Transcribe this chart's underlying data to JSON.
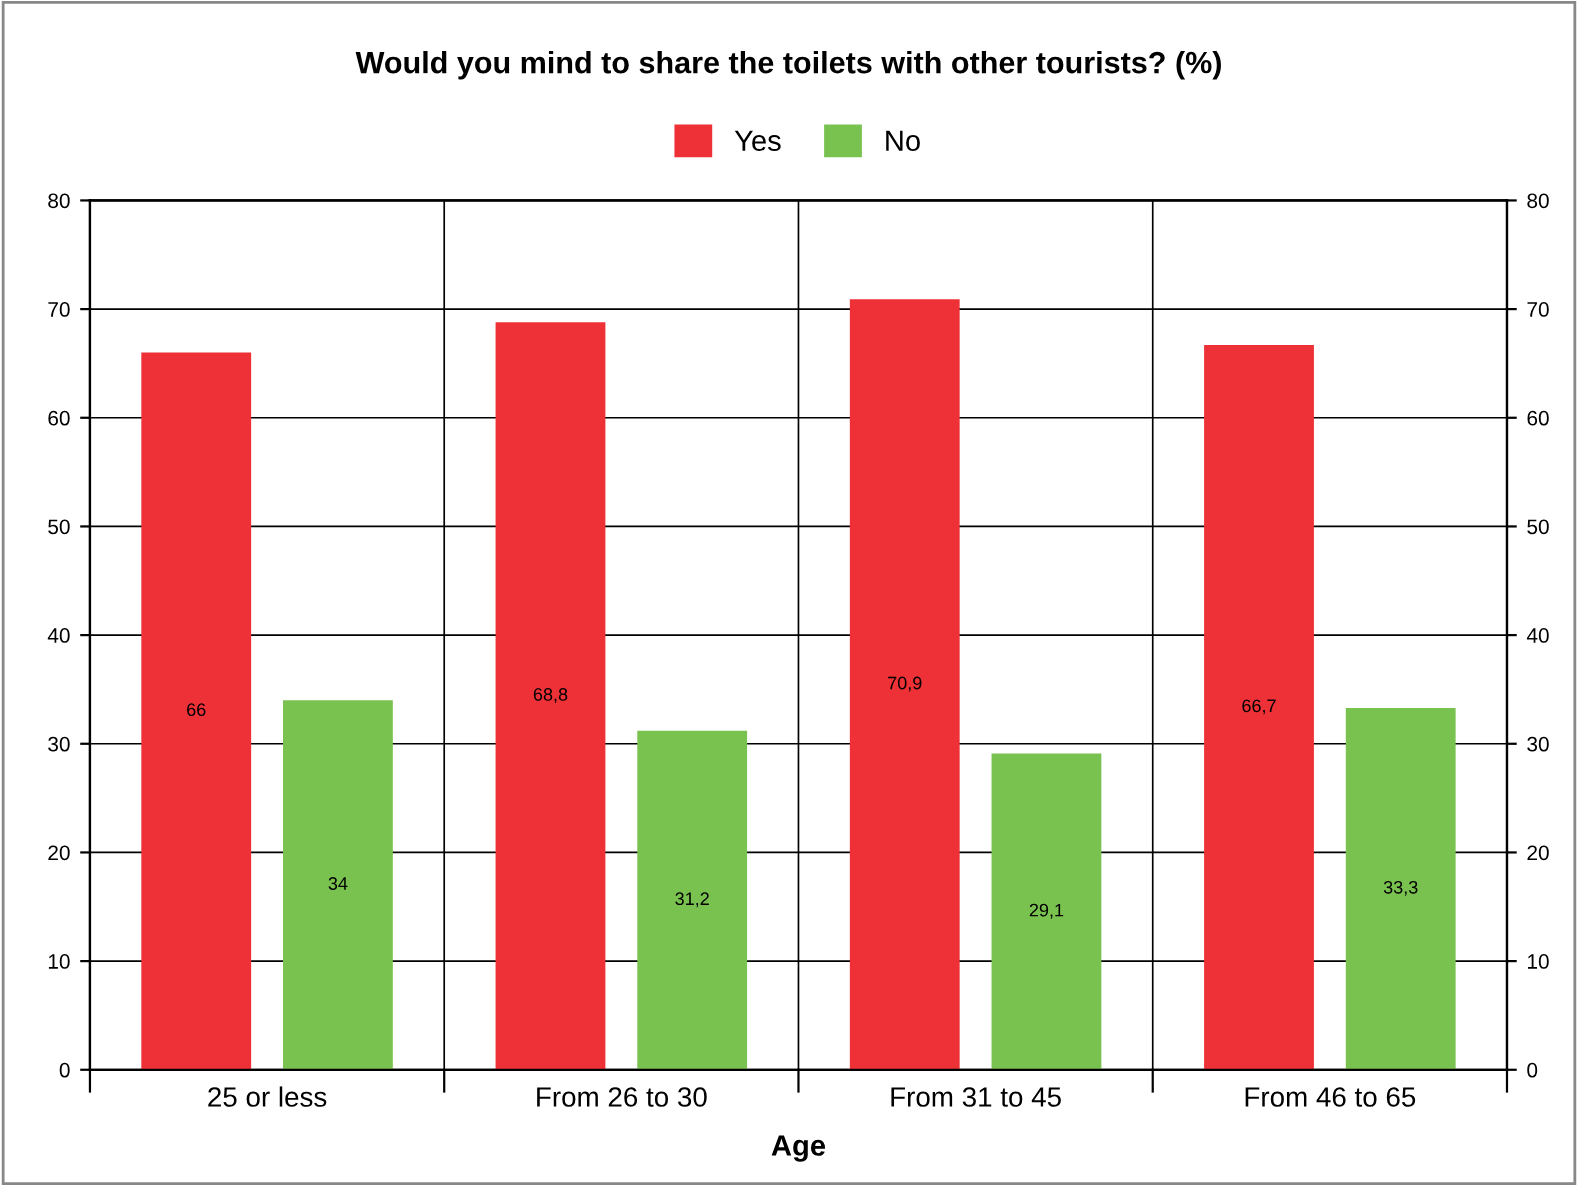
{
  "chart_data": {
    "type": "bar",
    "title": "Would you mind to share the toilets with other tourists? (%)",
    "xlabel": "Age",
    "categories": [
      "25 or less",
      "From 26 to 30",
      "From 31 to 45",
      "From 46 to 65"
    ],
    "series": [
      {
        "name": "Yes",
        "color": "#ee3136",
        "values": [
          66,
          68.8,
          70.9,
          66.7
        ],
        "value_labels": [
          "66",
          "68,8",
          "70,9",
          "66,7"
        ]
      },
      {
        "name": "No",
        "color": "#7ac250",
        "values": [
          34,
          31.2,
          29.1,
          33.3
        ],
        "value_labels": [
          "34",
          "31,2",
          "29,1",
          "33,3"
        ]
      }
    ],
    "ylim": [
      0,
      80
    ],
    "yticks": [
      0,
      10,
      20,
      30,
      40,
      50,
      60,
      70,
      80
    ],
    "y2lim": [
      0,
      80
    ],
    "y2ticks": [
      0,
      10,
      20,
      30,
      40,
      50,
      60,
      70,
      80
    ],
    "grid": true,
    "legend": "top"
  }
}
